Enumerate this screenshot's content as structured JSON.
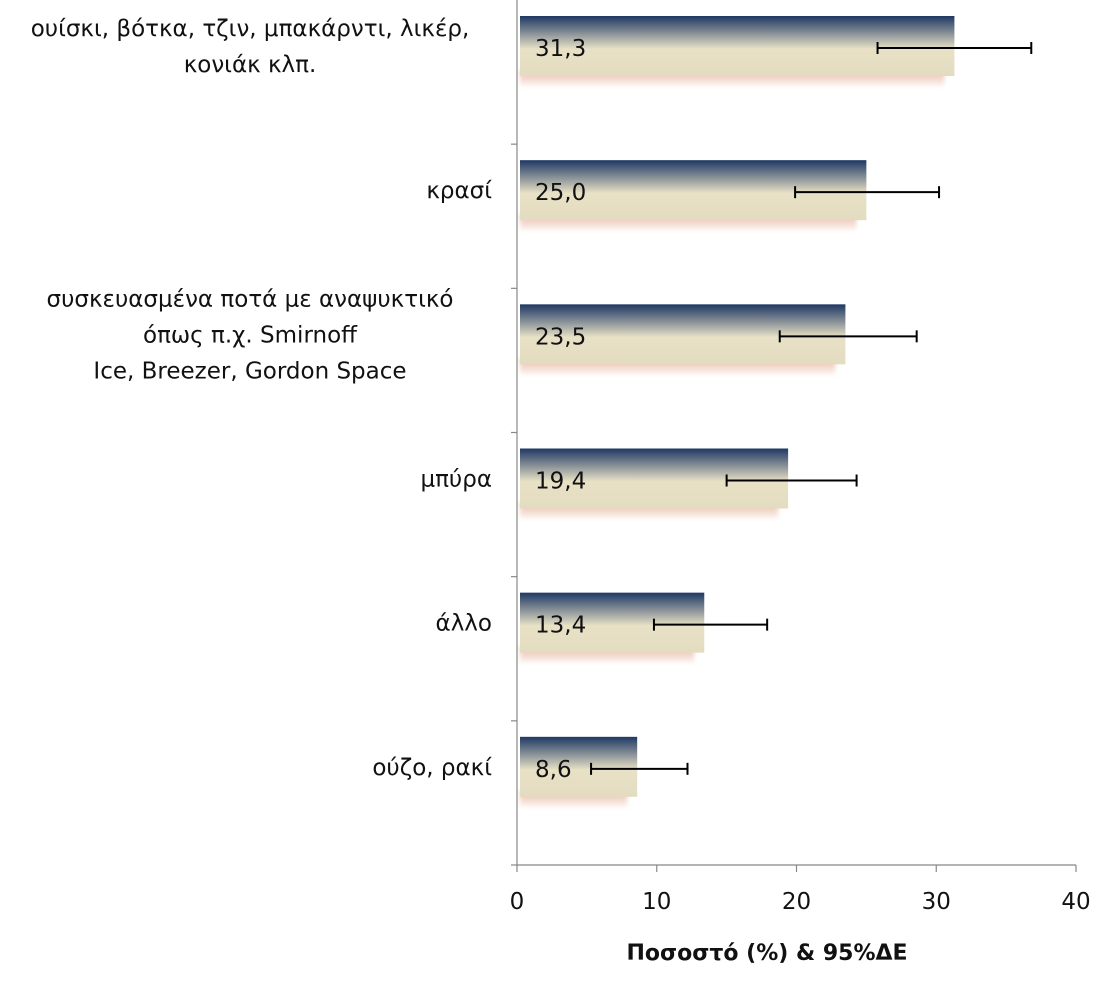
{
  "chart_data": {
    "type": "bar",
    "orientation": "horizontal",
    "categories": [
      [
        "ουίσκι, βότκα, τζιν, μπακάρντι, λικέρ,",
        "κονιάκ κλπ."
      ],
      [
        "κρασί"
      ],
      [
        "συσκευασμένα ποτά με αναψυκτικό",
        "όπως π.χ. Smirnoff",
        "Ice, Breezer, Gordon Space"
      ],
      [
        "μπύρα"
      ],
      [
        "άλλο"
      ],
      [
        "ούζο, ρακί"
      ]
    ],
    "values": [
      31.3,
      25.0,
      23.5,
      19.4,
      13.4,
      8.6
    ],
    "value_labels": [
      "31,3",
      "25,0",
      "23,5",
      "19,4",
      "13,4",
      "8,6"
    ],
    "error_bars": [
      [
        25.8,
        36.8
      ],
      [
        19.9,
        30.2
      ],
      [
        18.8,
        28.6
      ],
      [
        15.0,
        24.3
      ],
      [
        9.8,
        17.9
      ],
      [
        5.3,
        12.2
      ]
    ],
    "xlim": [
      0,
      40
    ],
    "xticks": [
      "0",
      "10",
      "20",
      "30",
      "40"
    ],
    "xlabel": "Ποσοστό (%) & 95%ΔΕ",
    "ylabel": "",
    "title": "",
    "grid": false,
    "legend": "none",
    "colors": {
      "bar_top": "#1f3864",
      "bar_mid": "#e8e1c6",
      "bar_bottom": "#e3dcc0",
      "shadow": "#e7b49e",
      "axis": "#888888",
      "errorbar": "#000000"
    }
  }
}
